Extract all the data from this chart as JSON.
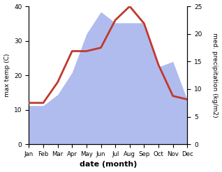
{
  "months": [
    "Jan",
    "Feb",
    "Mar",
    "Apr",
    "May",
    "Jun",
    "Jul",
    "Aug",
    "Sep",
    "Oct",
    "Nov",
    "Dec"
  ],
  "temp": [
    12,
    12,
    18,
    27,
    27,
    28,
    36,
    40,
    35,
    23,
    14,
    13
  ],
  "precip": [
    7,
    7,
    9,
    13,
    20,
    24,
    22,
    22,
    22,
    14,
    15,
    8
  ],
  "temp_color": "#c0392b",
  "precip_color": "#b0bcee",
  "ylabel_left": "max temp (C)",
  "ylabel_right": "med. precipitation (kg/m2)",
  "xlabel": "date (month)",
  "ylim_left": [
    0,
    40
  ],
  "ylim_right": [
    0,
    25
  ],
  "temp_linewidth": 2.0,
  "bg_color": "#ffffff"
}
